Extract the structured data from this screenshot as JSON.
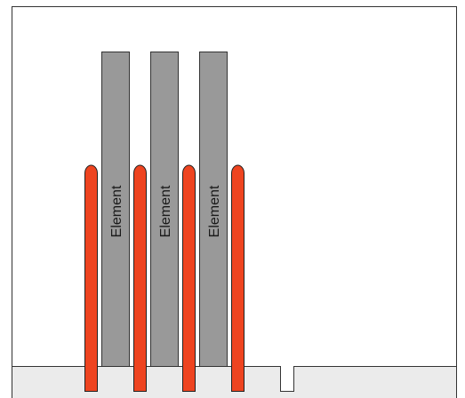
{
  "diagram": {
    "colors": {
      "frame": "#333333",
      "background": "#ffffff",
      "base": "#ebebeb",
      "element_fill": "#999999",
      "element_stroke": "#333333",
      "rod_fill": "#ee4420",
      "rod_stroke": "#222222"
    },
    "elements": [
      {
        "label": "Element"
      },
      {
        "label": "Element"
      },
      {
        "label": "Element"
      }
    ],
    "rods": [
      {},
      {},
      {},
      {}
    ],
    "base_slot": {
      "present": true
    }
  }
}
